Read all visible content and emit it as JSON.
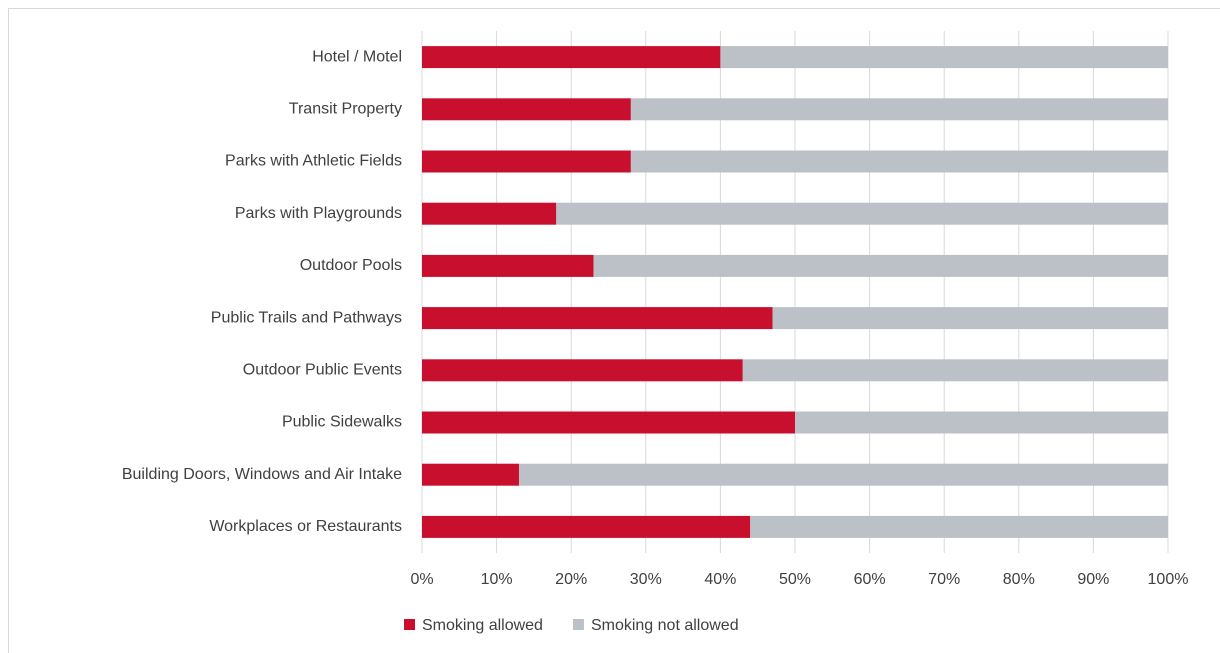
{
  "chart_data": {
    "type": "bar",
    "orientation": "horizontal",
    "stacked": true,
    "categories": [
      "Hotel / Motel",
      "Transit Property",
      "Parks with Athletic Fields",
      "Parks with Playgrounds",
      "Outdoor Pools",
      "Public Trails and Pathways",
      "Outdoor Public Events",
      "Public Sidewalks",
      "Building Doors, Windows and Air Intake",
      "Workplaces or Restaurants"
    ],
    "series": [
      {
        "name": "Smoking allowed",
        "color": "#c8102e",
        "values": [
          40,
          28,
          28,
          18,
          23,
          47,
          43,
          50,
          13,
          44
        ]
      },
      {
        "name": "Smoking not allowed",
        "color": "#bcc1c7",
        "values": [
          60,
          72,
          72,
          82,
          77,
          53,
          57,
          50,
          87,
          56
        ]
      }
    ],
    "xlim": [
      0,
      100
    ],
    "xticks": [
      {
        "value": 0,
        "label": "0%"
      },
      {
        "value": 10,
        "label": "10%"
      },
      {
        "value": 20,
        "label": "20%"
      },
      {
        "value": 30,
        "label": "30%"
      },
      {
        "value": 40,
        "label": "40%"
      },
      {
        "value": 50,
        "label": "50%"
      },
      {
        "value": 60,
        "label": "60%"
      },
      {
        "value": 70,
        "label": "70%"
      },
      {
        "value": 80,
        "label": "80%"
      },
      {
        "value": 90,
        "label": "90%"
      },
      {
        "value": 100,
        "label": "100%"
      }
    ],
    "grid": true,
    "legend": "bottom"
  }
}
